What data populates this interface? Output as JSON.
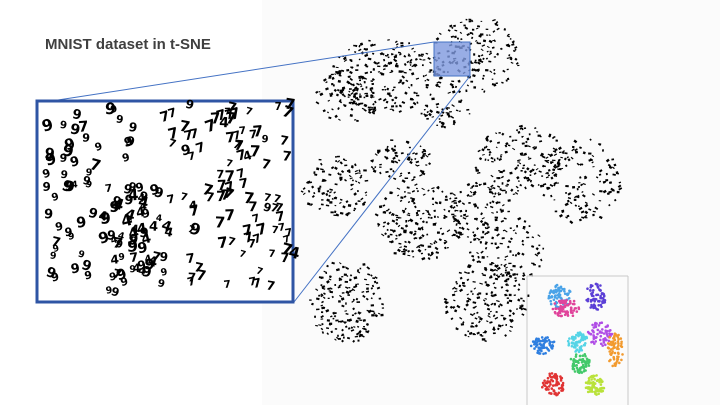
{
  "slide": {
    "title": "MNIST dataset in t-SNE"
  },
  "colors": {
    "title_text": "#404040",
    "zoom_frame": "#2f55a4",
    "connector": "#4472c4",
    "highlight_fill": "#7f9ae0",
    "digit_ink": "#000000"
  },
  "zoom_digits": [
    "9",
    "7",
    "4"
  ],
  "inset": {
    "palette": [
      "#4aa3e8",
      "#e0449b",
      "#5b3fd6",
      "#55d4e6",
      "#b04de6",
      "#f29a2e",
      "#2f7fe0",
      "#43c96a",
      "#e03333",
      "#b9e23a"
    ]
  }
}
